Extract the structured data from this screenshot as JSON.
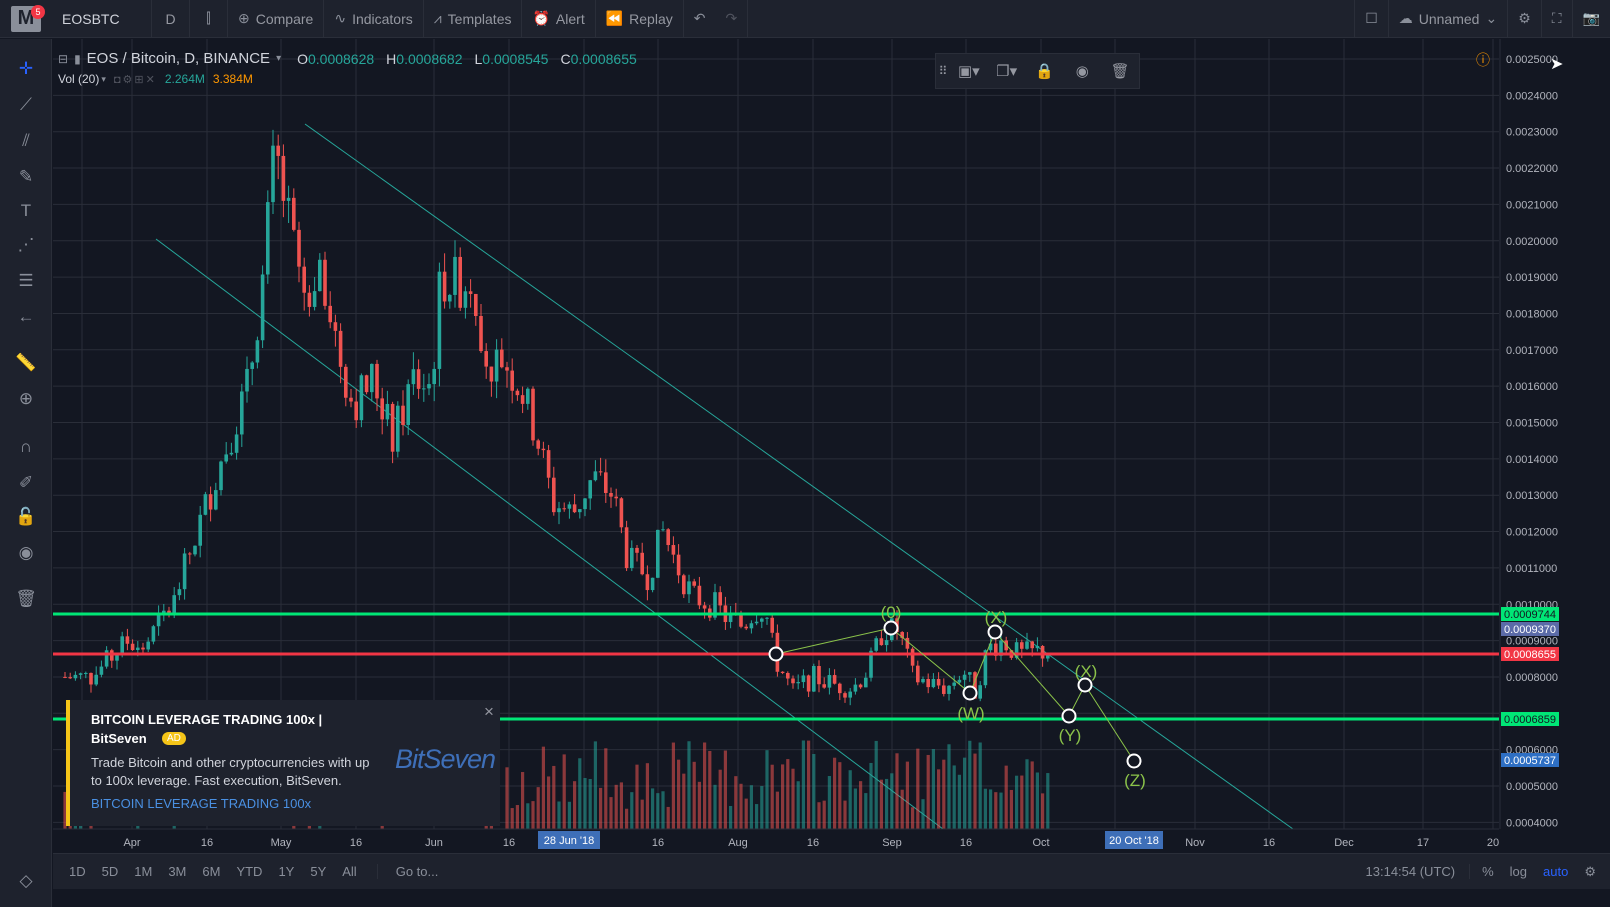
{
  "toolbar": {
    "logo_letter": "M",
    "notification_count": "5",
    "symbol": "EOSBTC",
    "interval": "D",
    "compare": "Compare",
    "indicators": "Indicators",
    "templates": "Templates",
    "alert": "Alert",
    "replay": "Replay",
    "layout_name": "Unnamed"
  },
  "legend": {
    "symbol": "EOS / Bitcoin, D, BINANCE",
    "open_label": "O",
    "open": "0.0008628",
    "high_label": "H",
    "high": "0.0008682",
    "low_label": "L",
    "low": "0.0008545",
    "close_label": "C",
    "close": "0.0008655",
    "volume_name": "Vol (20)",
    "volume_value": "2.264M",
    "volume_ma": "3.384M"
  },
  "price_axis": {
    "ticks": [
      "0.0025000",
      "0.0024000",
      "0.0023000",
      "0.0022000",
      "0.0021000",
      "0.0020000",
      "0.0019000",
      "0.0018000",
      "0.0017000",
      "0.0016000",
      "0.0015000",
      "0.0014000",
      "0.0013000",
      "0.0012000",
      "0.0011000",
      "0.0010000",
      "0.0009000",
      "0.0008000",
      "0.0006000",
      "0.0005000",
      "0.0004000"
    ],
    "labels": [
      {
        "text": "0.0009744",
        "color": "#00e676"
      },
      {
        "text": "0.0009370",
        "color": "#5b6ba8"
      },
      {
        "text": "0.0008655",
        "color": "#f23645"
      },
      {
        "text": "0.0006859",
        "color": "#00e676"
      },
      {
        "text": "0.0005737",
        "color": "#2e6fc4"
      }
    ]
  },
  "time_axis": {
    "ticks": [
      "Apr",
      "16",
      "May",
      "16",
      "Jun",
      "16",
      "16",
      "Aug",
      "16",
      "Sep",
      "16",
      "Oct",
      "Nov",
      "16",
      "Dec",
      "17",
      "20"
    ],
    "highlight_start": "28 Jun '18",
    "highlight_end": "20 Oct '18"
  },
  "waves": {
    "w0": "(0)",
    "x1": "(X)",
    "w": "(W)",
    "y": "(Y)",
    "x2": "(X)",
    "z": "(Z)"
  },
  "ad": {
    "title": "BITCOIN LEVERAGE TRADING 100x |",
    "brand": "BitSeven",
    "badge": "AD",
    "body": "Trade Bitcoin and other cryptocurrencies with up to 100x leverage. Fast execution, BitSeven.",
    "link": "BITCOIN LEVERAGE TRADING 100x",
    "logo": "BitSeven",
    "close": "×"
  },
  "bottom": {
    "ranges": [
      "1D",
      "5D",
      "1M",
      "3M",
      "6M",
      "YTD",
      "1Y",
      "5Y",
      "All"
    ],
    "goto": "Go to...",
    "time": "13:14:54 (UTC)",
    "percent": "%",
    "log": "log",
    "auto": "auto"
  },
  "colors": {
    "up": "#26a69a",
    "down": "#ef5350",
    "support": "#00e676",
    "current": "#f23645",
    "channel": "#26a69a",
    "wave_label": "#8bc34a"
  }
}
